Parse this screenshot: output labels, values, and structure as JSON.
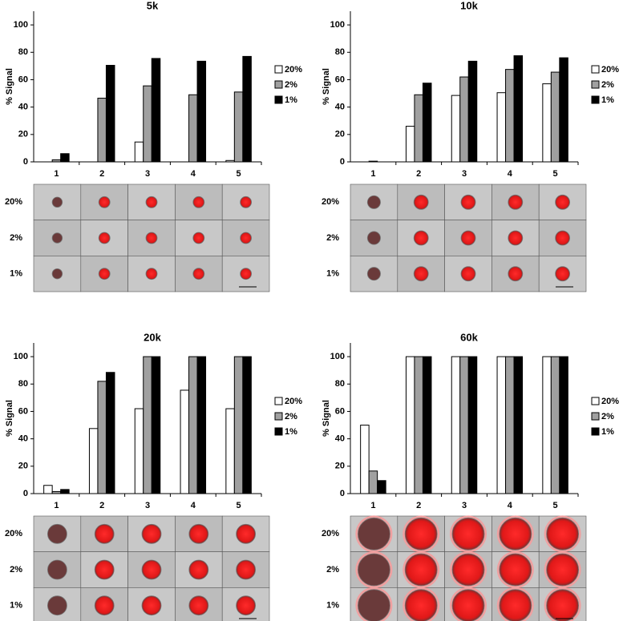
{
  "charts": [
    {
      "type": "bar",
      "title": "5k",
      "y_label": "% Signal",
      "categories": [
        "1",
        "2",
        "3",
        "4",
        "5"
      ],
      "series": [
        {
          "name": "20%",
          "color": "#ffffff",
          "values": [
            0,
            0,
            14.5,
            0,
            1
          ]
        },
        {
          "name": "2%",
          "color": "#a0a0a0",
          "values": [
            1.5,
            46.5,
            55.5,
            49,
            51
          ]
        },
        {
          "name": "1%",
          "color": "#000000",
          "values": [
            6,
            70.5,
            75.5,
            73.5,
            77
          ]
        }
      ],
      "ylim": [
        0,
        110
      ],
      "yticks": [
        0,
        20,
        40,
        60,
        80,
        100
      ],
      "legend": "right",
      "image_rows": [
        "20%",
        "2%",
        "1%"
      ]
    },
    {
      "type": "bar",
      "title": "10k",
      "y_label": "% Signal",
      "categories": [
        "1",
        "2",
        "3",
        "4",
        "5"
      ],
      "series": [
        {
          "name": "20%",
          "color": "#ffffff",
          "values": [
            0,
            26,
            48.5,
            50.5,
            57
          ]
        },
        {
          "name": "2%",
          "color": "#a0a0a0",
          "values": [
            0.5,
            49,
            62,
            67.5,
            65.5
          ]
        },
        {
          "name": "1%",
          "color": "#000000",
          "values": [
            0,
            57.5,
            73.5,
            77.5,
            76
          ]
        }
      ],
      "ylim": [
        0,
        110
      ],
      "yticks": [
        0,
        20,
        40,
        60,
        80,
        100
      ],
      "legend": "right",
      "image_rows": [
        "20%",
        "2%",
        "1%"
      ]
    },
    {
      "type": "bar",
      "title": "20k",
      "y_label": "% Signal",
      "categories": [
        "1",
        "2",
        "3",
        "4",
        "5"
      ],
      "series": [
        {
          "name": "20%",
          "color": "#ffffff",
          "values": [
            6,
            47.5,
            62,
            75.5,
            62
          ]
        },
        {
          "name": "2%",
          "color": "#a0a0a0",
          "values": [
            1.5,
            82,
            100,
            100,
            100
          ]
        },
        {
          "name": "1%",
          "color": "#000000",
          "values": [
            3,
            88.5,
            100,
            100,
            100
          ]
        }
      ],
      "ylim": [
        0,
        110
      ],
      "yticks": [
        0,
        20,
        40,
        60,
        80,
        100
      ],
      "legend": "right",
      "image_rows": [
        "20%",
        "2%",
        "1%"
      ]
    },
    {
      "type": "bar",
      "title": "60k",
      "y_label": "% Signal",
      "categories": [
        "1",
        "2",
        "3",
        "4",
        "5"
      ],
      "series": [
        {
          "name": "20%",
          "color": "#ffffff",
          "values": [
            50,
            100,
            100,
            100,
            100
          ]
        },
        {
          "name": "2%",
          "color": "#a0a0a0",
          "values": [
            16.5,
            100,
            100,
            100,
            100
          ]
        },
        {
          "name": "1%",
          "color": "#000000",
          "values": [
            9.5,
            100,
            100,
            100,
            100
          ]
        }
      ],
      "ylim": [
        0,
        110
      ],
      "yticks": [
        0,
        20,
        40,
        60,
        80,
        100
      ],
      "legend": "right",
      "image_rows": [
        "20%",
        "2%",
        "1%"
      ]
    }
  ]
}
